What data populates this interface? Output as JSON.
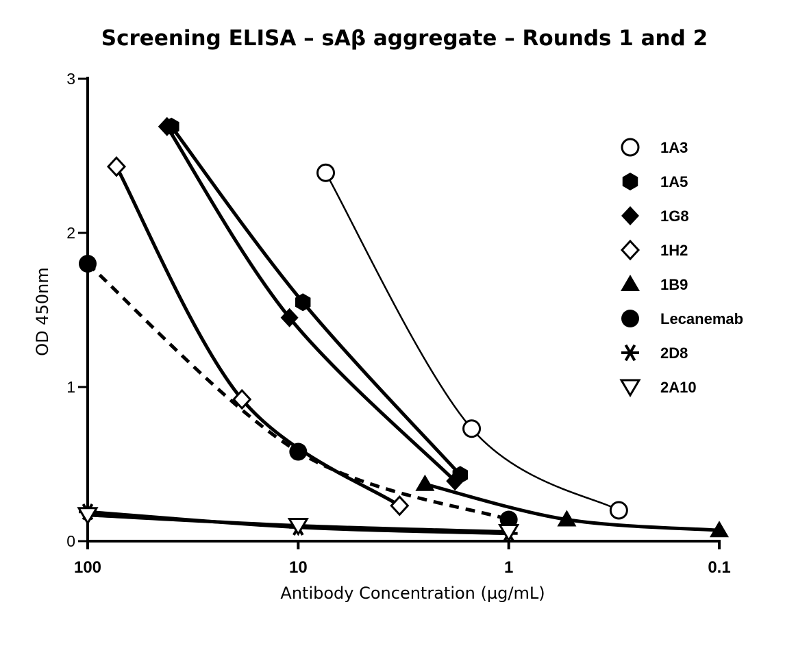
{
  "chart_data": {
    "type": "line",
    "title": "Screening ELISA – sAβ aggregate – Rounds 1 and 2",
    "xlabel": "Antibody Concentration (µg/mL)",
    "ylabel": "OD 450nm",
    "x_scale": "log",
    "x_reversed": true,
    "xlim": [
      100,
      0.1
    ],
    "ylim": [
      0,
      3
    ],
    "x_ticks": [
      100,
      10,
      1,
      0.1
    ],
    "x_tick_labels": [
      "100",
      "10",
      "1",
      "0.1"
    ],
    "y_ticks": [
      0,
      1,
      2,
      3
    ],
    "y_tick_labels": [
      "0",
      "1",
      "2",
      "3"
    ],
    "grid": false,
    "legend_position": "right",
    "series": [
      {
        "name": "1A3",
        "marker": "circle-open",
        "line": "thin",
        "color": "#000000",
        "x": [
          7.4,
          1.5,
          0.3
        ],
        "y": [
          2.39,
          0.73,
          0.2
        ]
      },
      {
        "name": "1A5",
        "marker": "hexagon-filled",
        "line": "thick",
        "color": "#000000",
        "x": [
          40,
          9.5,
          1.7
        ],
        "y": [
          2.69,
          1.55,
          0.43
        ]
      },
      {
        "name": "1G8",
        "marker": "diamond-filled",
        "line": "thick",
        "color": "#000000",
        "x": [
          42,
          11,
          1.8
        ],
        "y": [
          2.69,
          1.45,
          0.39
        ]
      },
      {
        "name": "1H2",
        "marker": "diamond-open",
        "line": "thick",
        "color": "#000000",
        "x": [
          73,
          18.5,
          3.3
        ],
        "y": [
          2.43,
          0.92,
          0.23
        ]
      },
      {
        "name": "1B9",
        "marker": "triangle-up-filled",
        "line": "thick",
        "color": "#000000",
        "x": [
          2.5,
          0.53,
          0.1
        ],
        "y": [
          0.37,
          0.14,
          0.07
        ]
      },
      {
        "name": "Lecanemab",
        "marker": "circle-filled",
        "line": "dashed",
        "color": "#000000",
        "x": [
          100,
          10,
          1
        ],
        "y": [
          1.8,
          0.58,
          0.14
        ]
      },
      {
        "name": "2D8",
        "marker": "star",
        "line": "thick",
        "color": "#000000",
        "x": [
          100,
          10,
          1
        ],
        "y": [
          0.19,
          0.09,
          0.05
        ]
      },
      {
        "name": "2A10",
        "marker": "triangle-down-open",
        "line": "thick",
        "color": "#000000",
        "x": [
          100,
          10,
          1
        ],
        "y": [
          0.17,
          0.1,
          0.06
        ]
      }
    ]
  }
}
